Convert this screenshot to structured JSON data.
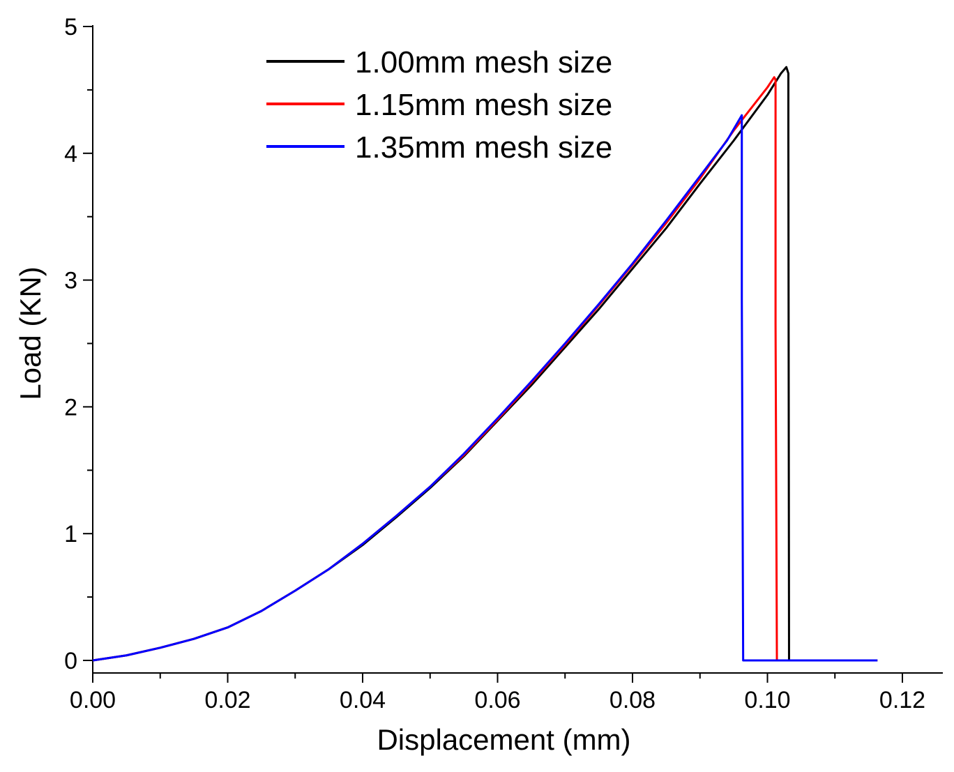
{
  "chart_data": {
    "type": "line",
    "title": "",
    "xlabel": "Displacement (mm)",
    "ylabel": "Load (KN)",
    "xlim": [
      0.0,
      0.12
    ],
    "ylim": [
      -0.1,
      5.0
    ],
    "x_ticks": [
      "0.00",
      "0.02",
      "0.04",
      "0.06",
      "0.08",
      "0.10",
      "0.12"
    ],
    "y_ticks": [
      "0",
      "1",
      "2",
      "3",
      "4",
      "5"
    ],
    "legend_position": "top-center",
    "series": [
      {
        "name": "1.00mm mesh size",
        "color": "#000000",
        "points": [
          [
            0,
            0
          ],
          [
            0.005,
            0.04
          ],
          [
            0.01,
            0.1
          ],
          [
            0.015,
            0.17
          ],
          [
            0.02,
            0.26
          ],
          [
            0.025,
            0.39
          ],
          [
            0.03,
            0.55
          ],
          [
            0.035,
            0.72
          ],
          [
            0.04,
            0.91
          ],
          [
            0.045,
            1.13
          ],
          [
            0.05,
            1.36
          ],
          [
            0.055,
            1.61
          ],
          [
            0.06,
            1.89
          ],
          [
            0.065,
            2.17
          ],
          [
            0.07,
            2.47
          ],
          [
            0.075,
            2.77
          ],
          [
            0.08,
            3.09
          ],
          [
            0.085,
            3.41
          ],
          [
            0.09,
            3.76
          ],
          [
            0.095,
            4.1
          ],
          [
            0.1,
            4.46
          ],
          [
            0.102,
            4.63
          ],
          [
            0.1028,
            4.68
          ],
          [
            0.1031,
            4.63
          ],
          [
            0.1031,
            4.15
          ],
          [
            0.1032,
            0.0
          ],
          [
            0.1163,
            0.0
          ]
        ]
      },
      {
        "name": "1.15mm mesh size",
        "color": "#ff0000",
        "points": [
          [
            0,
            0
          ],
          [
            0.005,
            0.04
          ],
          [
            0.01,
            0.1
          ],
          [
            0.015,
            0.17
          ],
          [
            0.02,
            0.26
          ],
          [
            0.025,
            0.39
          ],
          [
            0.03,
            0.55
          ],
          [
            0.035,
            0.72
          ],
          [
            0.04,
            0.92
          ],
          [
            0.045,
            1.14
          ],
          [
            0.05,
            1.37
          ],
          [
            0.055,
            1.62
          ],
          [
            0.06,
            1.9
          ],
          [
            0.065,
            2.19
          ],
          [
            0.07,
            2.49
          ],
          [
            0.075,
            2.8
          ],
          [
            0.08,
            3.12
          ],
          [
            0.085,
            3.45
          ],
          [
            0.09,
            3.8
          ],
          [
            0.095,
            4.18
          ],
          [
            0.1,
            4.52
          ],
          [
            0.101,
            4.6
          ],
          [
            0.1012,
            4.58
          ],
          [
            0.1012,
            2.65
          ],
          [
            0.1014,
            0.0
          ],
          [
            0.1163,
            0.0
          ]
        ]
      },
      {
        "name": "1.35mm mesh size",
        "color": "#0000ff",
        "points": [
          [
            0,
            0
          ],
          [
            0.005,
            0.04
          ],
          [
            0.01,
            0.1
          ],
          [
            0.015,
            0.17
          ],
          [
            0.02,
            0.26
          ],
          [
            0.025,
            0.39
          ],
          [
            0.03,
            0.55
          ],
          [
            0.035,
            0.72
          ],
          [
            0.04,
            0.92
          ],
          [
            0.045,
            1.14
          ],
          [
            0.05,
            1.37
          ],
          [
            0.055,
            1.63
          ],
          [
            0.06,
            1.91
          ],
          [
            0.065,
            2.2
          ],
          [
            0.07,
            2.5
          ],
          [
            0.075,
            2.81
          ],
          [
            0.08,
            3.13
          ],
          [
            0.085,
            3.47
          ],
          [
            0.09,
            3.82
          ],
          [
            0.094,
            4.1
          ],
          [
            0.0962,
            4.3
          ],
          [
            0.0962,
            2.85
          ],
          [
            0.0964,
            0.0
          ],
          [
            0.1163,
            0.0
          ]
        ]
      }
    ]
  }
}
